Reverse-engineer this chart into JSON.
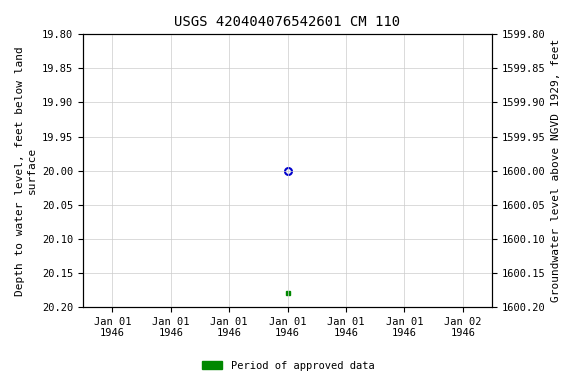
{
  "title": "USGS 420404076542601 CM 110",
  "ylabel_left": "Depth to water level, feet below land\nsurface",
  "ylabel_right": "Groundwater level above NGVD 1929, feet",
  "ylim_left": [
    19.8,
    20.2
  ],
  "ylim_right": [
    1600.2,
    1599.8
  ],
  "yticks_left": [
    19.8,
    19.85,
    19.9,
    19.95,
    20.0,
    20.05,
    20.1,
    20.15,
    20.2
  ],
  "yticks_right": [
    1600.2,
    1600.15,
    1600.1,
    1600.05,
    1600.0,
    1599.95,
    1599.9,
    1599.85,
    1599.8
  ],
  "data_blue": {
    "x": 3.0,
    "value": 20.0,
    "marker": "o",
    "color": "#0000cc",
    "markersize": 5,
    "markerfacecolor": "none",
    "markeredgewidth": 1.5
  },
  "data_green": {
    "x": 3.0,
    "value": 20.18,
    "marker": "s",
    "color": "#008800",
    "markersize": 3.5,
    "markerfacecolor": "#008800"
  },
  "legend_label": "Period of approved data",
  "legend_color": "#008800",
  "background_color": "#ffffff",
  "grid_color": "#cccccc",
  "title_fontsize": 10,
  "axis_label_fontsize": 8,
  "tick_fontsize": 7.5,
  "font_family": "monospace",
  "xlim": [
    -0.5,
    6.5
  ],
  "xtick_positions": [
    0,
    1,
    2,
    3,
    4,
    5,
    6
  ],
  "xtick_labels": [
    "Jan 01\n1946",
    "Jan 01\n1946",
    "Jan 01\n1946",
    "Jan 01\n1946",
    "Jan 01\n1946",
    "Jan 01\n1946",
    "Jan 02\n1946"
  ]
}
